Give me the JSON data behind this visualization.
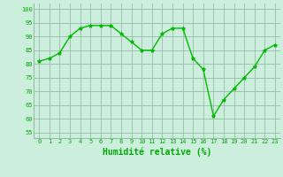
{
  "x": [
    0,
    1,
    2,
    3,
    4,
    5,
    6,
    7,
    8,
    9,
    10,
    11,
    12,
    13,
    14,
    15,
    16,
    17,
    18,
    19,
    20,
    21,
    22,
    23
  ],
  "y": [
    81,
    82,
    84,
    90,
    93,
    94,
    94,
    94,
    91,
    88,
    85,
    85,
    91,
    93,
    93,
    82,
    78,
    61,
    67,
    71,
    75,
    79,
    85,
    87
  ],
  "line_color": "#00bb00",
  "marker": "*",
  "bg_color": "#cceedd",
  "grid_color": "#99bbaa",
  "xlabel": "Humidité relative (%)",
  "xlabel_color": "#00aa00",
  "xlabel_fontsize": 7,
  "tick_color": "#00aa00",
  "tick_fontsize": 5,
  "yticks": [
    55,
    60,
    65,
    70,
    75,
    80,
    85,
    90,
    95,
    100
  ],
  "ylim": [
    53,
    102
  ],
  "xlim": [
    -0.5,
    23.5
  ]
}
